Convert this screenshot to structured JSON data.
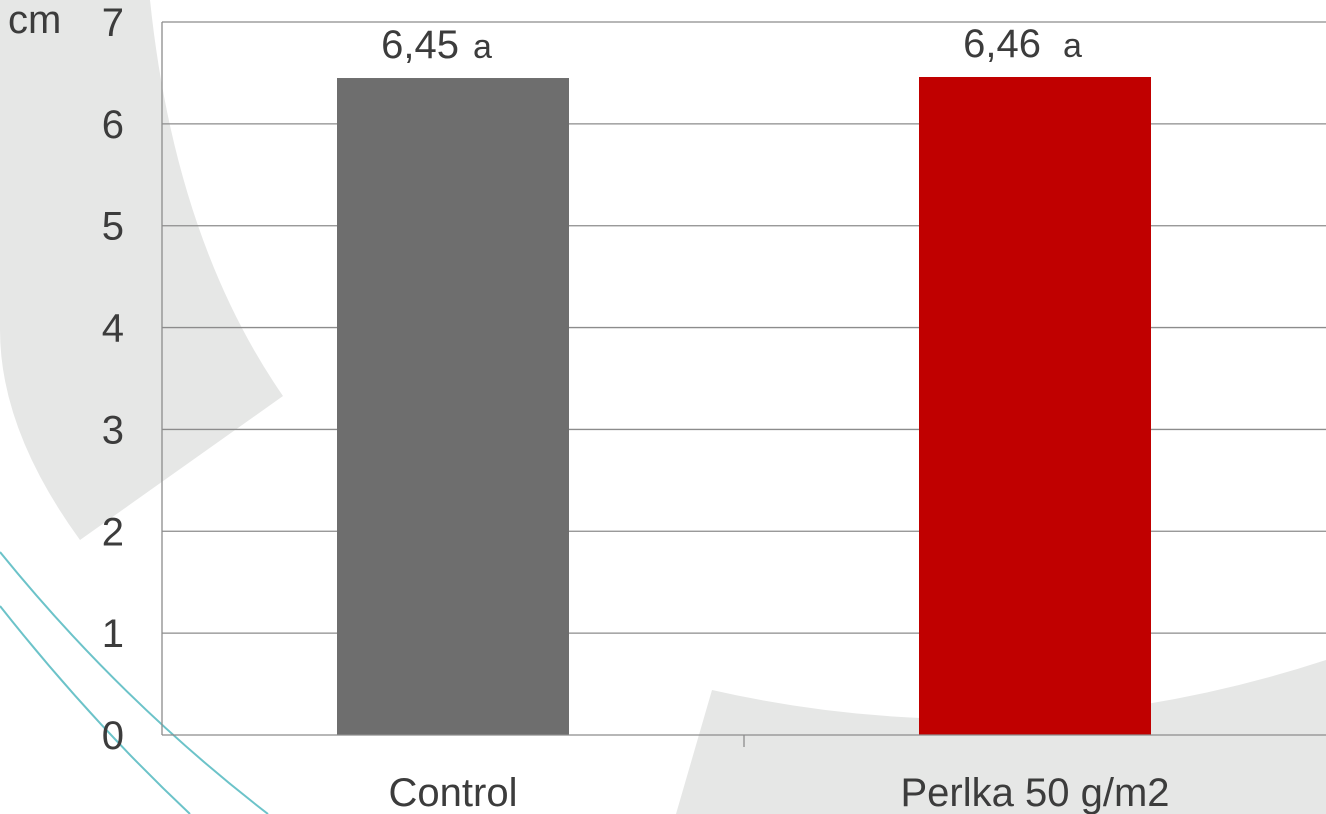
{
  "chart_data": {
    "type": "bar",
    "ylabel": "cm",
    "ylim": [
      0,
      7
    ],
    "yticks": [
      "0",
      "1",
      "2",
      "3",
      "4",
      "5",
      "6",
      "7"
    ],
    "grid": true,
    "categories": [
      "Control",
      "Perlka 50 g/m2"
    ],
    "values": [
      6.45,
      6.46
    ],
    "data_labels": [
      "6,45",
      "6,46"
    ],
    "significance": [
      "a",
      "a"
    ],
    "colors": [
      "#6e6e6e",
      "#c00000"
    ]
  },
  "colors": {
    "gridline": "#8c8c8c",
    "decor_gray": "#e6e7e6",
    "decor_teal": "#6cc3c9"
  }
}
